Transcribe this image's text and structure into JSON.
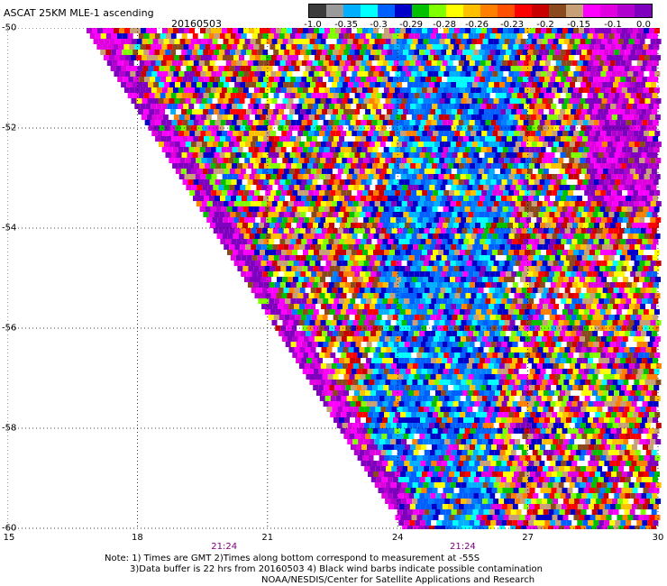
{
  "title": "ASCAT 25KM MLE-1 ascending",
  "date": "20160503",
  "colorbar": {
    "colors": [
      "#3c3c3c",
      "#9a9a9a",
      "#00b0ff",
      "#00ffff",
      "#0060ff",
      "#0000c8",
      "#00c000",
      "#80ff00",
      "#ffff00",
      "#ffc000",
      "#ff8000",
      "#ff5000",
      "#ff0000",
      "#c80000",
      "#8a4a1e",
      "#c8a078",
      "#ff00ff",
      "#e000e0",
      "#b000d0",
      "#8000c0"
    ],
    "ticks": [
      "-1.0",
      "-0.35",
      "-0.3",
      "-0.29",
      "-0.28",
      "-0.26",
      "-0.23",
      "-0.2",
      "-0.15",
      "-0.1",
      "0.0"
    ]
  },
  "map": {
    "lon_range": [
      15,
      30
    ],
    "lat_range": [
      -50,
      -60
    ],
    "lon_ticks": [
      "15",
      "18",
      "21",
      "24",
      "27",
      "30"
    ],
    "lat_ticks": [
      "-50",
      "-52",
      "-54",
      "-56",
      "-58",
      "-60"
    ],
    "time_labels": [
      {
        "label": "21:24",
        "lon": 20
      },
      {
        "label": "21:24",
        "lon": 25.5
      }
    ]
  },
  "notes": [
    "Note: 1) Times are GMT 2)Times along bottom correspond to measurement at -55S",
    "3)Data buffer is 22 hrs from 20160503 4) Black wind barbs indicate possible contamination",
    "NOAA/NESDIS/Center for Satellite Applications and Research"
  ]
}
